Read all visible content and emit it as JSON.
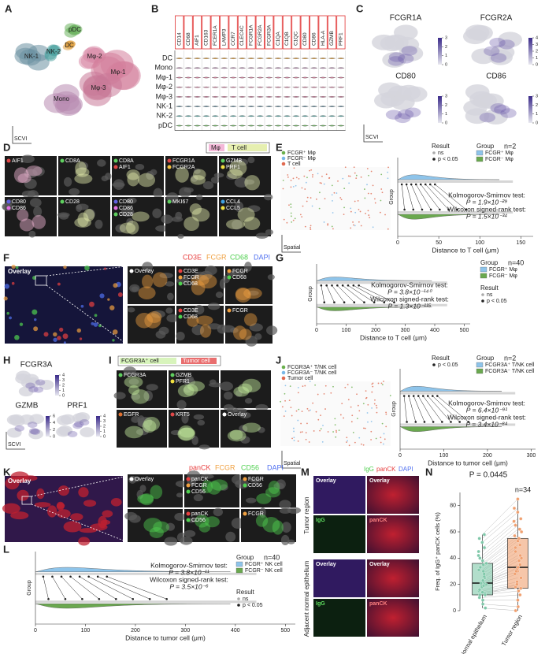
{
  "panels": {
    "A": {
      "label": "A",
      "axis_label": "SCVI",
      "clusters": [
        {
          "name": "pDC",
          "color": "#6cb35f"
        },
        {
          "name": "DC",
          "color": "#e0a040"
        },
        {
          "name": "NK-1",
          "color": "#6a8fa0"
        },
        {
          "name": "NK-2",
          "color": "#4fa3a0"
        },
        {
          "name": "Mφ-2",
          "color": "#d98aa8"
        },
        {
          "name": "Mφ-1",
          "color": "#d47d9a"
        },
        {
          "name": "Mφ-3",
          "color": "#c97898"
        },
        {
          "name": "Mono",
          "color": "#b88ab0"
        }
      ]
    },
    "B": {
      "label": "B",
      "genes": [
        "CD14",
        "CD68",
        "AIF1",
        "CD163",
        "FCER1A",
        "LAMP3",
        "CCR7",
        "CLEC4C",
        "FCGR1A",
        "FCGR2A",
        "FCGR3A",
        "C1QA",
        "C1QB",
        "C1QC",
        "CD80",
        "CD86",
        "HLA-A",
        "GZMB",
        "PRF1"
      ],
      "cell_types": [
        "DC",
        "Mono",
        "Mφ-1",
        "Mφ-2",
        "Mφ-3",
        "NK-1",
        "NK-2",
        "pDC"
      ],
      "row_colors": [
        "#e0a040",
        "#b88ab0",
        "#d47d9a",
        "#d98aa8",
        "#c97898",
        "#6a8fa0",
        "#4fa3a0",
        "#6cb35f"
      ]
    },
    "C": {
      "label": "C",
      "axis_label": "SCVI",
      "features": [
        {
          "gene": "FCGR1A",
          "ticks": [
            0,
            1,
            2,
            3
          ]
        },
        {
          "gene": "FCGR2A",
          "ticks": [
            0,
            1,
            2,
            3,
            4
          ]
        },
        {
          "gene": "CD80",
          "ticks": [
            0,
            1,
            2,
            3
          ]
        },
        {
          "gene": "CD86",
          "ticks": [
            0,
            1,
            2,
            3
          ]
        }
      ]
    },
    "D": {
      "label": "D",
      "legend": [
        {
          "text": "Mφ",
          "color": "#f4b8d8"
        },
        {
          "text": "T cell",
          "color": "#e6efb0"
        }
      ],
      "marker_colors": {
        "AIF1": "#e04848",
        "CD8A": "#5fcf5f",
        "FCGR1A": "#e04848",
        "FCGR2A": "#f0c040",
        "GZMB": "#5fcf5f",
        "PRF1": "#f0e040",
        "CD80": "#6060e0",
        "CD86": "#e070e0",
        "CD28": "#5fcf5f",
        "MKI67": "#5fcf5f",
        "CCL4": "#40a0e0",
        "CCL5": "#f0e040"
      },
      "tiles": [
        [
          "AIF1"
        ],
        [
          "CD8A"
        ],
        [
          "CD8A",
          "AIF1"
        ],
        [
          "FCGR1A",
          "FCGR2A"
        ],
        [
          "GZMB",
          "PRF1"
        ],
        [
          "CD80",
          "CD86"
        ],
        [
          "CD28"
        ],
        [
          "CD80",
          "CD86",
          "CD28"
        ],
        [
          "MKI67"
        ],
        [
          "CCL4",
          "CCL5"
        ]
      ]
    },
    "E": {
      "label": "E",
      "legend": [
        {
          "text": "FCGR⁺ Mφ",
          "color": "#6ab04c"
        },
        {
          "text": "FCGR⁻ Mφ",
          "color": "#7ab8e8"
        },
        {
          "text": "T cell",
          "color": "#e06a50"
        }
      ],
      "image_axis": "Spatial",
      "chart": {
        "result_title": "Result",
        "result_items": [
          "ns",
          "p < 0.05"
        ],
        "group_title": "Group",
        "n": "n=2",
        "groups": [
          {
            "name": "FCGR⁺ Mφ",
            "color": "#8ec4ea"
          },
          {
            "name": "FCGR⁻ Mφ",
            "color": "#6aa84f"
          }
        ],
        "tests": [
          "Kolmogorov-Smirnov test:",
          "P = 1.9×10⁻²⁹",
          "Wilcoxon signed-rank test:",
          "P = 1.5×10⁻³⁴"
        ],
        "ylabel": "Group",
        "xlabel": "Distance to T cell (μm)",
        "xlim": [
          0,
          165
        ],
        "xticks": [
          0,
          50,
          100,
          150
        ]
      }
    },
    "F": {
      "label": "F",
      "overlay": "Overlay",
      "legend": [
        {
          "text": "CD3E",
          "color": "#e84040"
        },
        {
          "text": "FCGR",
          "color": "#f0a040"
        },
        {
          "text": "CD68",
          "color": "#50d050"
        },
        {
          "text": "DAPI",
          "color": "#5070f0"
        }
      ],
      "zoom_tiles": [
        [
          "Overlay"
        ],
        [
          "CD3E",
          "FCGR",
          "CD68"
        ],
        [
          "FCGR",
          "CD68"
        ],
        [],
        [
          "CD3E",
          "CD68"
        ],
        [
          "FCGR"
        ]
      ]
    },
    "G": {
      "label": "G",
      "chart": {
        "result_title": "Result",
        "result_items": [
          "ns",
          "p < 0.05"
        ],
        "group_title": "Group",
        "n": "n=40",
        "groups": [
          {
            "name": "FCGR⁺ Mφ",
            "color": "#8ec4ea"
          },
          {
            "name": "FCGR⁻ Mφ",
            "color": "#6aa84f"
          }
        ],
        "tests": [
          "Kolmogorov-Smirnov test:",
          "P = 3.8×10⁻¹⁴⁰",
          "Wilcoxon signed-rank test:",
          "P = 1.3×10⁻¹¹⁵"
        ],
        "ylabel": "Group",
        "xlabel": "Distance to T cell (μm)",
        "xlim": [
          0,
          520
        ],
        "xticks": [
          0,
          100,
          200,
          300,
          400,
          500
        ]
      }
    },
    "H": {
      "label": "H",
      "axis_label": "SCVI",
      "features": [
        {
          "gene": "FCGR3A",
          "ticks": [
            0,
            1,
            2,
            3,
            4
          ]
        },
        {
          "gene": "GZMB",
          "ticks": [
            0,
            2,
            4,
            6
          ]
        },
        {
          "gene": "PRF1",
          "ticks": [
            0,
            1,
            2,
            3,
            4
          ]
        }
      ]
    },
    "I": {
      "label": "I",
      "legend": [
        {
          "text": "FCGR3A⁺ cell",
          "color": "#c8f0a0"
        },
        {
          "text": "Tumor cell",
          "color": "#e03030"
        }
      ],
      "marker_colors": {
        "FCGR3A": "#5fcf5f",
        "GZMB": "#5fcf5f",
        "PFR1": "#f0e040",
        "EGFR": "#e07030",
        "KRT5": "#e04848",
        "Overlay": "#ffffff"
      },
      "tiles": [
        [
          "FCGR3A"
        ],
        [
          "GZMB",
          "PFR1"
        ],
        [],
        [
          "EGFR"
        ],
        [
          "KRT5"
        ],
        [
          "Overlay"
        ]
      ]
    },
    "J": {
      "label": "J",
      "legend": [
        {
          "text": "FCGR3A⁺ T/NK cell",
          "color": "#6ab04c"
        },
        {
          "text": "FCGR3A⁻ T/NK cell",
          "color": "#7ab8e8"
        },
        {
          "text": "Tumor cell",
          "color": "#e06a50"
        }
      ],
      "image_axis": "Spatial",
      "chart": {
        "result_title": "Result",
        "result_items": [
          "p < 0.05"
        ],
        "group_title": "Group",
        "n": "n=2",
        "groups": [
          {
            "name": "FCGR3A⁺ T/NK cell",
            "color": "#8ec4ea"
          },
          {
            "name": "FCGR3A⁻ T/NK cell",
            "color": "#6aa84f"
          }
        ],
        "tests": [
          "Kolmogorov-Smirnov test:",
          "P = 6.4×10⁻⁹¹",
          "Wilcoxon signed-rank test:",
          "P = 3.4×10⁻⁸⁴"
        ],
        "ylabel": "Group",
        "xlabel": "Distance to tumor cell (μm)",
        "xlim": [
          0,
          310
        ],
        "xticks": [
          0,
          100,
          200,
          300
        ]
      }
    },
    "K": {
      "label": "K",
      "overlay": "Overlay",
      "legend": [
        {
          "text": "panCK",
          "color": "#e84040"
        },
        {
          "text": "FCGR",
          "color": "#f0a040"
        },
        {
          "text": "CD56",
          "color": "#50d050"
        },
        {
          "text": "DAPI",
          "color": "#5070f0"
        }
      ],
      "zoom_tiles": [
        [
          "Overlay"
        ],
        [
          "panCK",
          "FCGR",
          "CD56"
        ],
        [
          "FCGR",
          "CD56"
        ],
        [],
        [
          "panCK",
          "CD56"
        ],
        [
          "FCGR"
        ]
      ]
    },
    "L": {
      "label": "L",
      "chart": {
        "result_title": "Result",
        "result_items": [
          "ns",
          "p < 0.05"
        ],
        "group_title": "Group",
        "n": "n=40",
        "groups": [
          {
            "name": "FCGR⁺ NK cell",
            "color": "#8ec4ea"
          },
          {
            "name": "FCGR⁻ NK cell",
            "color": "#6aa84f"
          }
        ],
        "tests": [
          "Kolmogorov-Smirnov test:",
          "P = 3.8×10⁻¹¹",
          "Wilcoxon signed-rank test:",
          "P = 3.5×10⁻⁶"
        ],
        "ylabel": "Group",
        "xlabel": "Distance to tumor cell (μm)",
        "xlim": [
          0,
          520
        ],
        "xticks": [
          0,
          100,
          200,
          300,
          400,
          500
        ]
      }
    },
    "M": {
      "label": "M",
      "legend": [
        {
          "text": "IgG",
          "color": "#50d050"
        },
        {
          "text": "panCK",
          "color": "#e84040"
        },
        {
          "text": "DAPI",
          "color": "#5070f0"
        }
      ],
      "regions": [
        {
          "name": "Tumor region",
          "tiles": [
            "Overlay",
            "Overlay",
            "IgG",
            "panCK"
          ]
        },
        {
          "name": "Adjacent normal epithelium",
          "tiles": [
            "Overlay",
            "Overlay",
            "IgG",
            "panCK"
          ]
        }
      ]
    },
    "N": {
      "label": "N",
      "p": "P = 0.0445",
      "n": "n=34",
      "ylabel": "Freq. of IgG⁺ panCK cells (%)",
      "ylim": [
        0,
        90
      ],
      "yticks": [
        0,
        20,
        40,
        60,
        80
      ],
      "groups": [
        {
          "name": "Normal epithelium",
          "color": "#7fc8a9",
          "box": {
            "min": 2,
            "q1": 12,
            "median": 21,
            "q3": 36,
            "max": 58
          },
          "values": [
            2,
            5,
            8,
            10,
            12,
            13,
            14,
            15,
            16,
            18,
            19,
            20,
            20,
            21,
            21,
            22,
            23,
            25,
            26,
            28,
            30,
            31,
            33,
            35,
            36,
            38,
            40,
            42,
            45,
            48,
            52,
            55,
            58,
            12
          ]
        },
        {
          "name": "Tumor region",
          "color": "#f0a070",
          "box": {
            "min": 0,
            "q1": 17,
            "median": 33,
            "q3": 55,
            "max": 85
          },
          "values": [
            0,
            3,
            8,
            12,
            15,
            17,
            18,
            20,
            22,
            25,
            28,
            30,
            30,
            32,
            33,
            35,
            38,
            40,
            42,
            45,
            48,
            50,
            53,
            55,
            57,
            60,
            62,
            65,
            68,
            70,
            75,
            78,
            85,
            20
          ]
        }
      ]
    }
  }
}
